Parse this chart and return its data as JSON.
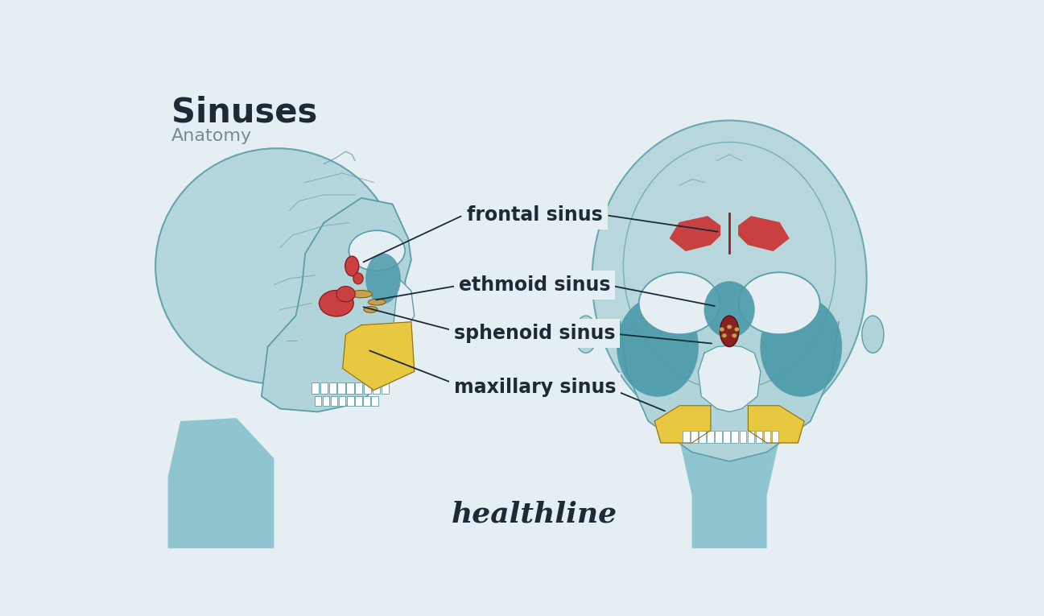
{
  "title": "Sinuses",
  "subtitle": "Anatomy",
  "title_color": "#1c2b36",
  "subtitle_color": "#7a8a95",
  "background_color": "#e5eef2",
  "brand": "healthline",
  "label_color": "#1c2b36",
  "line_color": "#1c2b36",
  "labels": [
    "frontal sinus",
    "ethmoid sinus",
    "sphenoid sinus",
    "maxillary sinus"
  ],
  "skull_teal_fill": "#b0d4da",
  "skull_teal_dark": "#5a9eaa",
  "skull_teal_accent": "#4a8fa0",
  "skull_body_teal": "#72b8c4",
  "red_sinus": "#c94040",
  "tan_sinus": "#c8a050",
  "yellow_sinus": "#e8c840",
  "dark_teal_sinus": "#4a9aaa"
}
